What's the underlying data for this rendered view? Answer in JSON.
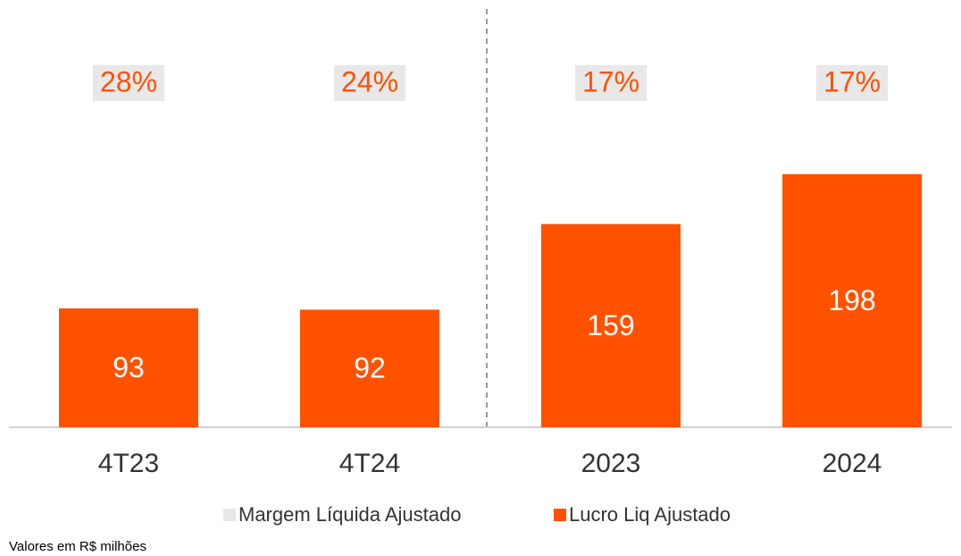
{
  "chart_data": {
    "type": "bar",
    "categories": [
      "4T23",
      "4T24",
      "2023",
      "2024"
    ],
    "series": [
      {
        "name": "Margem Líquida Ajustado",
        "color": "#e8e8e8",
        "values": [
          28,
          24,
          17,
          17
        ],
        "value_labels": [
          "28%",
          "24%",
          "17%",
          "17%"
        ]
      },
      {
        "name": "Lucro Liq Ajustado",
        "color": "#ff5100",
        "values": [
          93,
          92,
          159,
          198
        ]
      }
    ],
    "note": "Valores em R$ milhões"
  }
}
